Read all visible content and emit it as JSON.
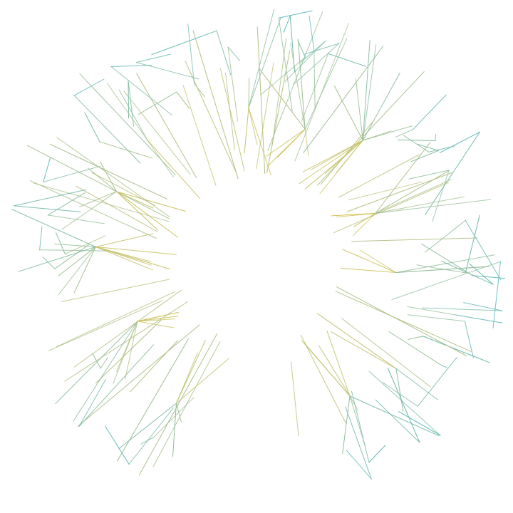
{
  "artwork": {
    "background": "#ffffff",
    "palette": {
      "inner": "#e8c13a",
      "middle": "#a9c08a",
      "outer": "#3bb3c6"
    },
    "clusters": [
      [
        -93,
        14
      ],
      [
        -72,
        14
      ],
      [
        -48,
        12
      ],
      [
        -18,
        13
      ],
      [
        10,
        12
      ],
      [
        35,
        8
      ],
      [
        58,
        9
      ],
      [
        122,
        10
      ],
      [
        150,
        13
      ],
      [
        187,
        12
      ],
      [
        205,
        11
      ],
      [
        230,
        12
      ]
    ]
  }
}
